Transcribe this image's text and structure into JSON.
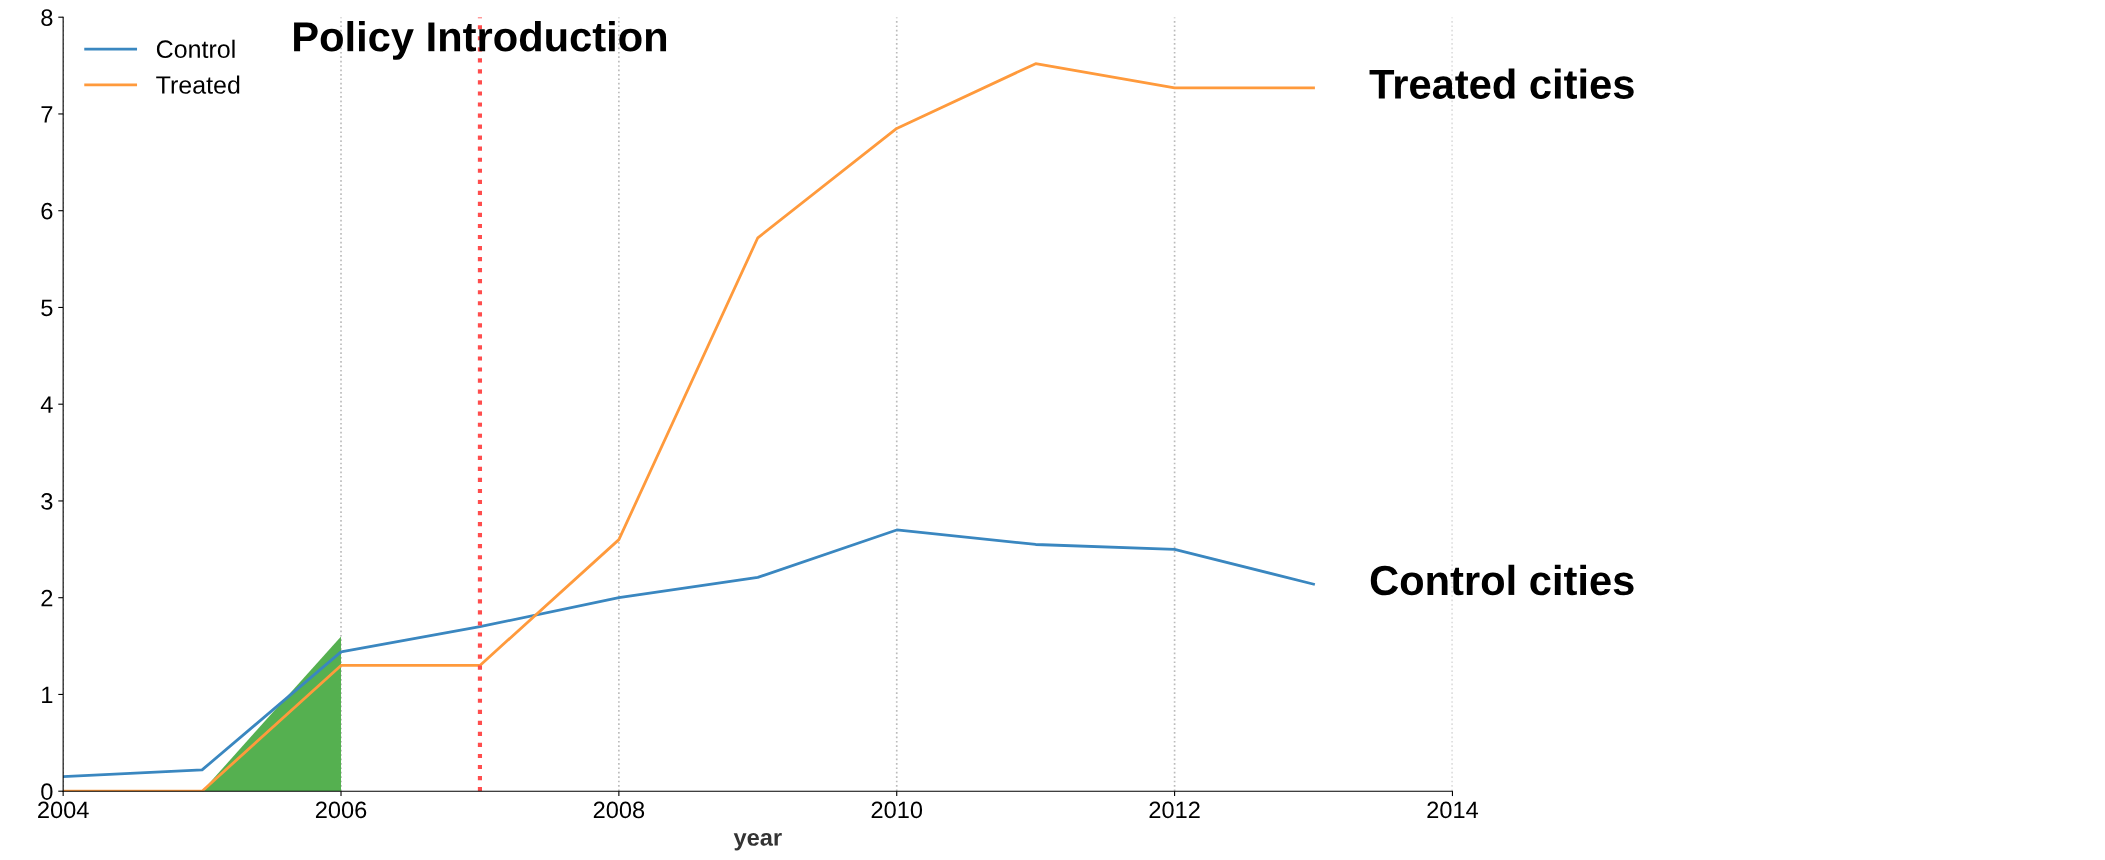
{
  "chart_data": {
    "type": "line",
    "xlabel": "year",
    "x": [
      2004,
      2005,
      2006,
      2007,
      2008,
      2009,
      2010,
      2011,
      2012,
      2013
    ],
    "series": [
      {
        "name": "Control",
        "color": "#3a87c0",
        "values": [
          0.15,
          0.22,
          1.44,
          1.7,
          2.0,
          2.21,
          2.7,
          2.55,
          2.5,
          2.14
        ]
      },
      {
        "name": "Treated",
        "color": "#ff9a3c",
        "values": [
          0,
          0,
          1.3,
          1.3,
          2.6,
          5.72,
          6.85,
          7.52,
          7.27,
          7.27
        ]
      },
      {
        "type": "area",
        "color": "#55b050",
        "x": [
          2005,
          2006
        ],
        "values": [
          0,
          1.6
        ]
      }
    ],
    "xlim": [
      2004,
      2014
    ],
    "xticks": [
      2004,
      2006,
      2008,
      2010,
      2012,
      2014
    ],
    "ylim": [
      0,
      8
    ],
    "yticks": [
      0,
      1,
      2,
      3,
      4,
      5,
      6,
      7,
      8
    ],
    "ref_lines": [
      {
        "axis": "x",
        "value": 2007,
        "label": "Policy Introduction",
        "color": "#ff4d4d",
        "line_style": "dotted"
      }
    ],
    "annotations": [
      {
        "text": "Treated cities",
        "x": 2013,
        "y": 7.27
      },
      {
        "text": "Control cities",
        "x": 2013,
        "y": 2.14
      }
    ],
    "grid": "x",
    "legend": "top left",
    "line_style": "solid",
    "marker": "none"
  }
}
